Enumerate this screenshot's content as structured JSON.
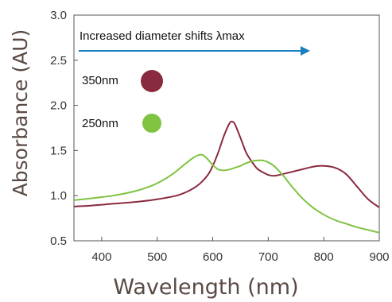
{
  "chart_data": {
    "type": "line",
    "title": "",
    "xlabel": "Wavelength (nm)",
    "ylabel": "Absorbance (AU)",
    "xlim": [
      350,
      900
    ],
    "ylim": [
      0.5,
      3.0
    ],
    "x_ticks": [
      400,
      500,
      600,
      700,
      800,
      900
    ],
    "y_ticks": [
      0.5,
      1.0,
      1.5,
      2.0,
      2.5,
      3.0
    ],
    "x_tick_labels": [
      "400",
      "500",
      "600",
      "700",
      "800",
      "900"
    ],
    "y_tick_labels": [
      "0.5",
      "1.0",
      "1.5",
      "2.0",
      "2.5",
      "3.0"
    ],
    "grid": false,
    "annotation": "Increased diameter shifts λmax",
    "arrow_color": "#1a7fc0",
    "legend_placement": "top-left",
    "series": [
      {
        "name": "350nm",
        "color": "#8a2a3f",
        "x": [
          350,
          380,
          420,
          460,
          500,
          540,
          570,
          590,
          600,
          610,
          620,
          630,
          635,
          640,
          650,
          660,
          670,
          680,
          690,
          700,
          710,
          720,
          740,
          760,
          780,
          800,
          820,
          840,
          860,
          880,
          900
        ],
        "y": [
          0.88,
          0.89,
          0.91,
          0.93,
          0.96,
          1.01,
          1.1,
          1.22,
          1.33,
          1.48,
          1.66,
          1.8,
          1.82,
          1.79,
          1.64,
          1.48,
          1.38,
          1.3,
          1.26,
          1.23,
          1.22,
          1.23,
          1.26,
          1.29,
          1.32,
          1.33,
          1.31,
          1.24,
          1.1,
          0.96,
          0.87
        ]
      },
      {
        "name": "250nm",
        "color": "#80c342",
        "x": [
          350,
          380,
          420,
          460,
          490,
          510,
          530,
          550,
          565,
          575,
          582,
          590,
          600,
          610,
          620,
          630,
          640,
          650,
          660,
          670,
          680,
          690,
          700,
          710,
          720,
          730,
          740,
          760,
          780,
          800,
          820,
          840,
          860,
          880,
          900
        ],
        "y": [
          0.95,
          0.97,
          1.0,
          1.05,
          1.11,
          1.17,
          1.25,
          1.35,
          1.42,
          1.45,
          1.45,
          1.41,
          1.34,
          1.29,
          1.28,
          1.29,
          1.31,
          1.33,
          1.36,
          1.38,
          1.39,
          1.39,
          1.37,
          1.33,
          1.27,
          1.2,
          1.12,
          0.98,
          0.87,
          0.79,
          0.73,
          0.69,
          0.65,
          0.62,
          0.59
        ]
      }
    ]
  }
}
